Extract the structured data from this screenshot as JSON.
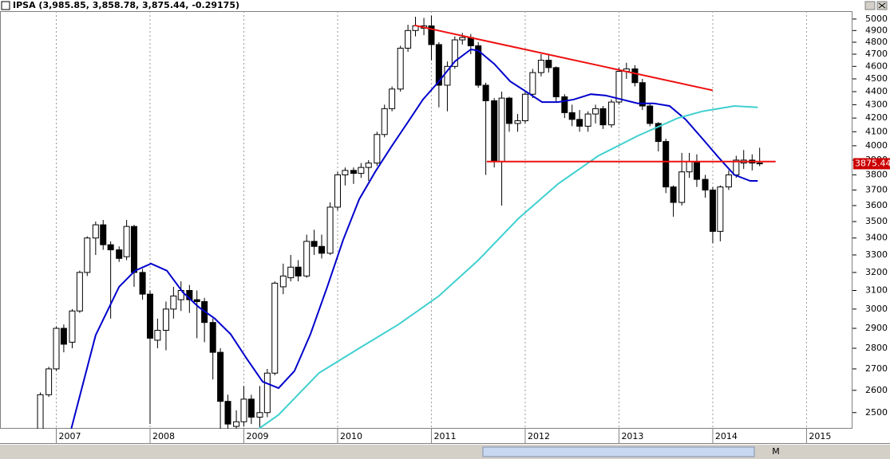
{
  "chart_data": {
    "type": "candlestick",
    "title": "IPSA (3,985.85, 3,858.78, 3,875.44, -0.29175)",
    "log": true,
    "xlim": [
      2006.4,
      2015.49
    ],
    "xticks": [
      2007,
      2008,
      2009,
      2010,
      2011,
      2012,
      2013,
      2014,
      2015
    ],
    "ylim": [
      2430,
      5070
    ],
    "yticks": [
      2500,
      2600,
      2700,
      2800,
      2900,
      3000,
      3100,
      3200,
      3300,
      3400,
      3500,
      3600,
      3700,
      3800,
      3900,
      4000,
      4100,
      4200,
      4300,
      4400,
      4500,
      4600,
      4700,
      4800,
      4900,
      5000
    ],
    "grid": true,
    "up_color": "#ffffff",
    "down_color": "#000000",
    "x": [
      2006.83,
      2006.92,
      2007.0,
      2007.08,
      2007.17,
      2007.25,
      2007.33,
      2007.42,
      2007.5,
      2007.58,
      2007.67,
      2007.75,
      2007.83,
      2007.92,
      2008.0,
      2008.08,
      2008.17,
      2008.25,
      2008.33,
      2008.42,
      2008.5,
      2008.58,
      2008.67,
      2008.75,
      2008.83,
      2008.92,
      2009.0,
      2009.08,
      2009.17,
      2009.25,
      2009.33,
      2009.42,
      2009.5,
      2009.58,
      2009.67,
      2009.75,
      2009.83,
      2009.92,
      2010.0,
      2010.08,
      2010.17,
      2010.25,
      2010.33,
      2010.42,
      2010.5,
      2010.58,
      2010.67,
      2010.75,
      2010.83,
      2010.92,
      2011.0,
      2011.08,
      2011.17,
      2011.25,
      2011.33,
      2011.42,
      2011.5,
      2011.58,
      2011.67,
      2011.75,
      2011.83,
      2011.92,
      2012.0,
      2012.08,
      2012.17,
      2012.25,
      2012.33,
      2012.42,
      2012.5,
      2012.58,
      2012.67,
      2012.75,
      2012.83,
      2012.92,
      2013.0,
      2013.08,
      2013.17,
      2013.25,
      2013.33,
      2013.42,
      2013.5,
      2013.58,
      2013.67,
      2013.75,
      2013.83,
      2013.92,
      2014.0,
      2014.08,
      2014.17,
      2014.25,
      2014.33,
      2014.42,
      2014.5
    ],
    "open": [
      2430,
      2580,
      2700,
      2900,
      2830,
      2990,
      3200,
      3400,
      3480,
      3360,
      3330,
      3290,
      3470,
      3200,
      3080,
      2840,
      2890,
      3000,
      3050,
      3100,
      3050,
      3040,
      2930,
      2780,
      2550,
      2440,
      2460,
      2560,
      2480,
      2500,
      2680,
      3120,
      3170,
      3230,
      3180,
      3380,
      3350,
      3310,
      3590,
      3800,
      3830,
      3810,
      3850,
      3880,
      4080,
      4270,
      4420,
      4750,
      4900,
      4920,
      4940,
      4780,
      4450,
      4600,
      4820,
      4840,
      4770,
      4450,
      4330,
      3890,
      4350,
      4160,
      4180,
      4380,
      4550,
      4650,
      4590,
      4360,
      4240,
      4190,
      4140,
      4230,
      4270,
      4150,
      4320,
      4560,
      4580,
      4470,
      4290,
      4160,
      4030,
      3720,
      3620,
      3820,
      3890,
      3770,
      3700,
      3440,
      3720,
      3800,
      3880,
      3900,
      3880
    ],
    "high": [
      2590,
      2710,
      2910,
      2920,
      3000,
      3210,
      3410,
      3500,
      3510,
      3380,
      3350,
      3510,
      3480,
      3220,
      3100,
      2950,
      3040,
      3120,
      3150,
      3130,
      3100,
      3060,
      2950,
      2800,
      2580,
      2510,
      2620,
      2580,
      2620,
      2700,
      3150,
      3250,
      3300,
      3270,
      3420,
      3450,
      3420,
      3620,
      3820,
      3850,
      3850,
      3880,
      3900,
      4100,
      4300,
      4440,
      4770,
      4950,
      5020,
      5010,
      5030,
      4800,
      4640,
      4850,
      4880,
      4870,
      4800,
      4470,
      4350,
      4400,
      4360,
      4230,
      4400,
      4580,
      4700,
      4700,
      4600,
      4380,
      4300,
      4260,
      4250,
      4300,
      4290,
      4340,
      4590,
      4630,
      4610,
      4500,
      4310,
      4170,
      4050,
      3730,
      3950,
      3950,
      3940,
      3800,
      3720,
      3730,
      3830,
      3930,
      3970,
      3940,
      3985.85
    ],
    "low": [
      2430,
      2570,
      2690,
      2780,
      2800,
      2980,
      3180,
      3300,
      3330,
      2950,
      3260,
      3270,
      3120,
      3050,
      2450,
      2800,
      2790,
      2950,
      2990,
      2980,
      2850,
      2830,
      2650,
      2430,
      2430,
      2430,
      2440,
      2450,
      2430,
      2480,
      2670,
      3080,
      3150,
      3150,
      3170,
      3300,
      3280,
      3300,
      3570,
      3730,
      3740,
      3780,
      3760,
      3860,
      4060,
      4250,
      4400,
      4720,
      4850,
      4860,
      4650,
      4280,
      4250,
      4580,
      4780,
      4700,
      4430,
      3800,
      3850,
      3600,
      4100,
      4100,
      4160,
      4350,
      4520,
      4550,
      4320,
      4200,
      4140,
      4100,
      4100,
      4160,
      4120,
      4130,
      4300,
      4500,
      4440,
      4260,
      4140,
      3960,
      3680,
      3530,
      3600,
      3780,
      3720,
      3650,
      3370,
      3380,
      3700,
      3780,
      3840,
      3830,
      3858.78
    ],
    "close": [
      2580,
      2700,
      2900,
      2820,
      2990,
      3200,
      3400,
      3480,
      3360,
      3330,
      3280,
      3470,
      3200,
      3080,
      2850,
      2890,
      3000,
      3070,
      3100,
      3050,
      3040,
      2930,
      2780,
      2550,
      2450,
      2460,
      2560,
      2480,
      2500,
      2680,
      3140,
      3180,
      3230,
      3180,
      3380,
      3350,
      3310,
      3590,
      3800,
      3830,
      3810,
      3850,
      3880,
      4080,
      4270,
      4420,
      4750,
      4900,
      4940,
      4940,
      4780,
      4450,
      4600,
      4820,
      4840,
      4770,
      4450,
      4330,
      3890,
      4350,
      4160,
      4180,
      4380,
      4550,
      4650,
      4590,
      4360,
      4240,
      4190,
      4140,
      4230,
      4270,
      4150,
      4320,
      4560,
      4580,
      4470,
      4290,
      4160,
      4030,
      3720,
      3620,
      3820,
      3890,
      3770,
      3700,
      3440,
      3720,
      3800,
      3900,
      3900,
      3880,
      3875.44
    ],
    "last_price": 3875.44,
    "lines": [
      {
        "color": "#0000cc",
        "x": [
          2007.16,
          2007.42,
          2007.67,
          2007.84,
          2008.01,
          2008.18,
          2008.35,
          2008.52,
          2008.69,
          2008.86,
          2009.03,
          2009.2,
          2009.37,
          2009.54,
          2009.71,
          2009.89,
          2010.06,
          2010.23,
          2010.4,
          2010.57,
          2010.74,
          2010.91,
          2011.08,
          2011.25,
          2011.42,
          2011.5,
          2011.67,
          2011.84,
          2012.01,
          2012.18,
          2012.35,
          2012.52,
          2012.7,
          2012.86,
          2013.03,
          2013.2,
          2013.37,
          2013.54,
          2013.71,
          2013.89,
          2014.06,
          2014.23,
          2014.4,
          2014.48
        ],
        "values": [
          2430,
          2865,
          3120,
          3210,
          3250,
          3210,
          3090,
          3010,
          2950,
          2870,
          2750,
          2640,
          2610,
          2690,
          2870,
          3120,
          3390,
          3640,
          3820,
          3990,
          4160,
          4340,
          4480,
          4640,
          4740,
          4730,
          4620,
          4480,
          4400,
          4320,
          4320,
          4340,
          4380,
          4370,
          4340,
          4310,
          4310,
          4290,
          4190,
          4050,
          3920,
          3800,
          3760,
          3760
        ]
      },
      {
        "color": "#40d0d0",
        "x": [
          2009.16,
          2009.37,
          2009.8,
          2010.23,
          2010.65,
          2011.08,
          2011.5,
          2011.93,
          2012.35,
          2012.78,
          2013.2,
          2013.63,
          2013.89,
          2014.23,
          2014.48
        ],
        "values": [
          2430,
          2490,
          2680,
          2800,
          2920,
          3070,
          3270,
          3520,
          3740,
          3930,
          4070,
          4200,
          4250,
          4290,
          4280
        ]
      },
      {
        "color": "#ee1111",
        "x": [
          2010.82,
          2014.0
        ],
        "values": [
          4945,
          4410
        ]
      },
      {
        "color": "#ee1111",
        "x": [
          2011.59,
          2014.67
        ],
        "values": [
          3890,
          3890
        ]
      }
    ],
    "zoom_label": "M"
  }
}
